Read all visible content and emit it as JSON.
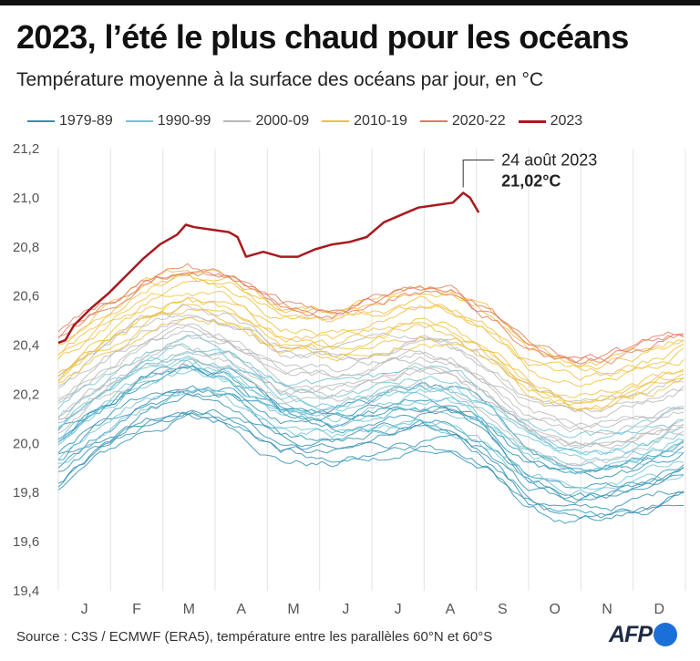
{
  "header": {
    "title": "2023, l’été le plus chaud pour les océans",
    "subtitle": "Température moyenne à la surface des océans par jour, en °C"
  },
  "legend": [
    {
      "label": "1979-89",
      "color": "#2f8fb3"
    },
    {
      "label": "1990-99",
      "color": "#6ec3d6"
    },
    {
      "label": "2000-09",
      "color": "#b8b8b8"
    },
    {
      "label": "2010-19",
      "color": "#f0c040"
    },
    {
      "label": "2020-22",
      "color": "#e07b5a"
    },
    {
      "label": "2023",
      "color": "#a8191e"
    }
  ],
  "chart_data": {
    "type": "line",
    "title": "2023, l’été le plus chaud pour les océans",
    "subtitle": "Température moyenne à la surface des océans par jour, en °C",
    "x_unit": "day of year",
    "x_range": [
      1,
      365
    ],
    "month_ticks": [
      "J",
      "F",
      "M",
      "A",
      "M",
      "J",
      "J",
      "A",
      "S",
      "O",
      "N",
      "D"
    ],
    "ylim": [
      19.4,
      21.2
    ],
    "yticks": [
      19.4,
      19.6,
      19.8,
      20.0,
      20.2,
      20.4,
      20.6,
      20.8,
      21.0,
      21.2
    ],
    "ytick_labels": [
      "19,4",
      "19,6",
      "19,8",
      "20,0",
      "20,2",
      "20,4",
      "20,6",
      "20,8",
      "21,0",
      "21,2"
    ],
    "grid": "vertical month lines",
    "legend_position": "top",
    "groups": [
      {
        "name": "1979-89",
        "color": "#2f8fb3",
        "years": 11,
        "profile": [
          [
            1,
            19.93
          ],
          [
            20,
            20.03
          ],
          [
            50,
            20.16
          ],
          [
            75,
            20.22
          ],
          [
            100,
            20.19
          ],
          [
            130,
            20.06
          ],
          [
            160,
            20.03
          ],
          [
            190,
            20.07
          ],
          [
            210,
            20.1
          ],
          [
            230,
            20.08
          ],
          [
            250,
            20.0
          ],
          [
            275,
            19.84
          ],
          [
            300,
            19.78
          ],
          [
            320,
            19.79
          ],
          [
            340,
            19.82
          ],
          [
            365,
            19.88
          ]
        ]
      },
      {
        "name": "1990-99",
        "color": "#6ec3d6",
        "years": 10,
        "profile": [
          [
            1,
            20.03
          ],
          [
            20,
            20.13
          ],
          [
            50,
            20.26
          ],
          [
            75,
            20.32
          ],
          [
            100,
            20.29
          ],
          [
            130,
            20.16
          ],
          [
            160,
            20.13
          ],
          [
            190,
            20.17
          ],
          [
            210,
            20.2
          ],
          [
            230,
            20.18
          ],
          [
            250,
            20.1
          ],
          [
            275,
            19.96
          ],
          [
            300,
            19.91
          ],
          [
            320,
            19.92
          ],
          [
            340,
            19.95
          ],
          [
            365,
            20.01
          ]
        ]
      },
      {
        "name": "2000-09",
        "color": "#b8b8b8",
        "years": 10,
        "profile": [
          [
            1,
            20.16
          ],
          [
            20,
            20.26
          ],
          [
            50,
            20.39
          ],
          [
            75,
            20.45
          ],
          [
            100,
            20.42
          ],
          [
            130,
            20.29
          ],
          [
            160,
            20.27
          ],
          [
            190,
            20.31
          ],
          [
            210,
            20.34
          ],
          [
            230,
            20.32
          ],
          [
            250,
            20.24
          ],
          [
            275,
            20.1
          ],
          [
            300,
            20.05
          ],
          [
            320,
            20.06
          ],
          [
            340,
            20.1
          ],
          [
            365,
            20.16
          ]
        ]
      },
      {
        "name": "2010-19",
        "color": "#f0c040",
        "years": 10,
        "profile": [
          [
            1,
            20.33
          ],
          [
            20,
            20.43
          ],
          [
            50,
            20.57
          ],
          [
            75,
            20.63
          ],
          [
            100,
            20.6
          ],
          [
            130,
            20.48
          ],
          [
            160,
            20.46
          ],
          [
            190,
            20.5
          ],
          [
            210,
            20.54
          ],
          [
            230,
            20.52
          ],
          [
            250,
            20.44
          ],
          [
            275,
            20.3
          ],
          [
            300,
            20.24
          ],
          [
            320,
            20.25
          ],
          [
            340,
            20.29
          ],
          [
            365,
            20.35
          ]
        ]
      },
      {
        "name": "2020-22",
        "color": "#e07b5a",
        "years": 3,
        "profile": [
          [
            1,
            20.44
          ],
          [
            20,
            20.54
          ],
          [
            50,
            20.67
          ],
          [
            75,
            20.72
          ],
          [
            100,
            20.68
          ],
          [
            130,
            20.57
          ],
          [
            160,
            20.55
          ],
          [
            190,
            20.59
          ],
          [
            210,
            20.63
          ],
          [
            230,
            20.61
          ],
          [
            250,
            20.53
          ],
          [
            275,
            20.39
          ],
          [
            300,
            20.33
          ],
          [
            320,
            20.34
          ],
          [
            340,
            20.38
          ],
          [
            365,
            20.44
          ]
        ]
      }
    ],
    "series": [
      {
        "name": "2023",
        "color": "#a8191e",
        "x": [
          1,
          5,
          10,
          20,
          30,
          40,
          50,
          60,
          70,
          75,
          80,
          90,
          100,
          105,
          110,
          120,
          130,
          140,
          150,
          160,
          170,
          180,
          190,
          200,
          210,
          220,
          230,
          236,
          240,
          245
        ],
        "y": [
          20.41,
          20.42,
          20.48,
          20.55,
          20.61,
          20.68,
          20.75,
          20.81,
          20.85,
          20.89,
          20.88,
          20.87,
          20.86,
          20.84,
          20.76,
          20.78,
          20.76,
          20.76,
          20.79,
          20.81,
          20.82,
          20.84,
          20.9,
          20.93,
          20.96,
          20.97,
          20.98,
          21.02,
          21.0,
          20.94
        ]
      }
    ],
    "annotation": {
      "x": 236,
      "y": 21.02,
      "date_label": "24 août 2023",
      "value_label": "21,02°C"
    }
  },
  "footer": {
    "source": "Source : C3S / ECMWF (ERA5), température entre les parallèles 60°N et 60°S"
  },
  "logo": {
    "text": "AFP"
  }
}
